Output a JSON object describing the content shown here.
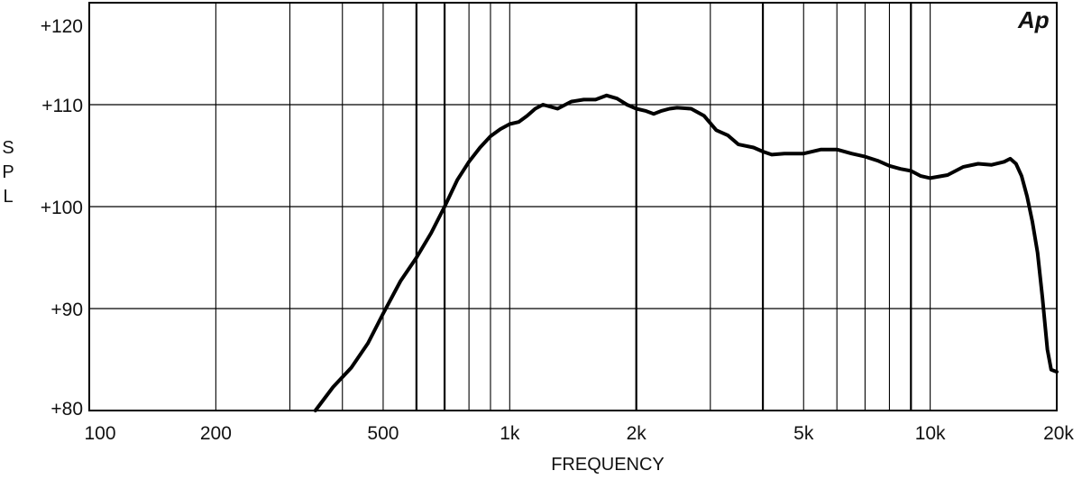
{
  "chart_data": {
    "type": "line",
    "logo_text": "Ap",
    "xlabel": "FREQUENCY",
    "ylabel": "SPL",
    "x_scale": "log",
    "xlim": [
      100,
      20000
    ],
    "ylim": [
      80,
      120
    ],
    "grid": true,
    "x_ticks": [
      {
        "value": 100,
        "label": "100"
      },
      {
        "value": 200,
        "label": "200"
      },
      {
        "value": 500,
        "label": "500"
      },
      {
        "value": 1000,
        "label": "1k"
      },
      {
        "value": 2000,
        "label": "2k"
      },
      {
        "value": 5000,
        "label": "5k"
      },
      {
        "value": 10000,
        "label": "10k"
      },
      {
        "value": 20000,
        "label": "20k"
      }
    ],
    "x_gridlines": [
      200,
      300,
      400,
      500,
      600,
      700,
      800,
      900,
      1000,
      2000,
      3000,
      4000,
      5000,
      6000,
      7000,
      8000,
      9000,
      10000
    ],
    "x_gridlines_heavy": [
      600,
      700,
      2000,
      4000,
      9000
    ],
    "y_ticks": [
      {
        "value": 80,
        "label": "+80"
      },
      {
        "value": 90,
        "label": "+90"
      },
      {
        "value": 100,
        "label": "+100"
      },
      {
        "value": 110,
        "label": "+110"
      },
      {
        "value": 120,
        "label": "+120"
      }
    ],
    "y_gridlines": [
      90,
      100,
      110
    ],
    "series": [
      {
        "color": "#000000",
        "points": [
          [
            345,
            80.0
          ],
          [
            380,
            82.3
          ],
          [
            420,
            84.2
          ],
          [
            460,
            86.6
          ],
          [
            500,
            89.5
          ],
          [
            550,
            92.7
          ],
          [
            600,
            95.0
          ],
          [
            650,
            97.4
          ],
          [
            700,
            100.0
          ],
          [
            750,
            102.6
          ],
          [
            800,
            104.4
          ],
          [
            850,
            105.8
          ],
          [
            900,
            106.9
          ],
          [
            950,
            107.6
          ],
          [
            1000,
            108.1
          ],
          [
            1050,
            108.3
          ],
          [
            1100,
            108.9
          ],
          [
            1150,
            109.6
          ],
          [
            1200,
            110.0
          ],
          [
            1300,
            109.6
          ],
          [
            1400,
            110.3
          ],
          [
            1500,
            110.5
          ],
          [
            1600,
            110.5
          ],
          [
            1700,
            110.9
          ],
          [
            1800,
            110.6
          ],
          [
            1900,
            110.0
          ],
          [
            2000,
            109.6
          ],
          [
            2100,
            109.4
          ],
          [
            2200,
            109.1
          ],
          [
            2300,
            109.4
          ],
          [
            2400,
            109.6
          ],
          [
            2500,
            109.7
          ],
          [
            2700,
            109.6
          ],
          [
            2900,
            108.9
          ],
          [
            3100,
            107.5
          ],
          [
            3300,
            107.0
          ],
          [
            3500,
            106.1
          ],
          [
            3800,
            105.8
          ],
          [
            4000,
            105.4
          ],
          [
            4200,
            105.1
          ],
          [
            4500,
            105.2
          ],
          [
            5000,
            105.2
          ],
          [
            5500,
            105.6
          ],
          [
            6000,
            105.6
          ],
          [
            6500,
            105.2
          ],
          [
            7000,
            104.9
          ],
          [
            7500,
            104.5
          ],
          [
            8000,
            104.0
          ],
          [
            8500,
            103.7
          ],
          [
            9000,
            103.5
          ],
          [
            9500,
            103.0
          ],
          [
            10000,
            102.8
          ],
          [
            11000,
            103.1
          ],
          [
            12000,
            103.9
          ],
          [
            13000,
            104.2
          ],
          [
            14000,
            104.1
          ],
          [
            15000,
            104.4
          ],
          [
            15500,
            104.7
          ],
          [
            16000,
            104.2
          ],
          [
            16500,
            103.0
          ],
          [
            17000,
            101.0
          ],
          [
            17500,
            98.5
          ],
          [
            18000,
            95.5
          ],
          [
            18500,
            91.0
          ],
          [
            19000,
            86.0
          ],
          [
            19400,
            84.0
          ],
          [
            20000,
            83.8
          ]
        ]
      }
    ]
  }
}
